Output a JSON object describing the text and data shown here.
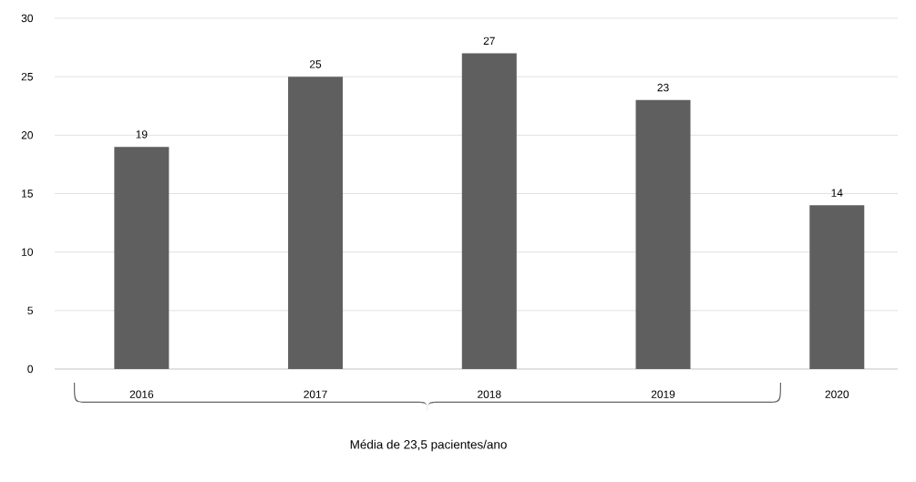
{
  "chart_data": {
    "type": "bar",
    "categories": [
      "2016",
      "2017",
      "2018",
      "2019",
      "2020"
    ],
    "values": [
      19,
      25,
      27,
      23,
      14
    ],
    "color": "#5f5f5f",
    "ylim": [
      0,
      30
    ],
    "yticks": [
      0,
      5,
      10,
      15,
      20,
      25,
      30
    ],
    "grid": "y",
    "data_labels": true,
    "annotations": [
      "Média de 23,5 pacientes/ano"
    ]
  }
}
